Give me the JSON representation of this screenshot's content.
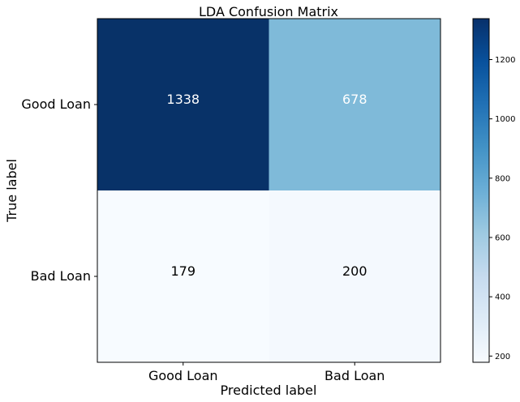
{
  "chart_data": {
    "type": "heatmap",
    "title": "LDA Confusion Matrix",
    "xlabel": "Predicted label",
    "ylabel": "True label",
    "x_categories": [
      "Good Loan",
      "Bad Loan"
    ],
    "y_categories": [
      "Good Loan",
      "Bad Loan"
    ],
    "matrix": [
      [
        1338,
        678
      ],
      [
        179,
        200
      ]
    ],
    "colormap": "Blues",
    "colorbar": {
      "range": [
        179,
        1338
      ],
      "ticks": [
        200,
        400,
        600,
        800,
        1000,
        1200
      ]
    },
    "cell_colors": [
      [
        "#083268",
        "#7fbad9"
      ],
      [
        "#f7fbff",
        "#f4f9fe"
      ]
    ],
    "text_colors": [
      [
        "#ffffff",
        "#ffffff"
      ],
      [
        "#000000",
        "#000000"
      ]
    ],
    "grid": false
  }
}
